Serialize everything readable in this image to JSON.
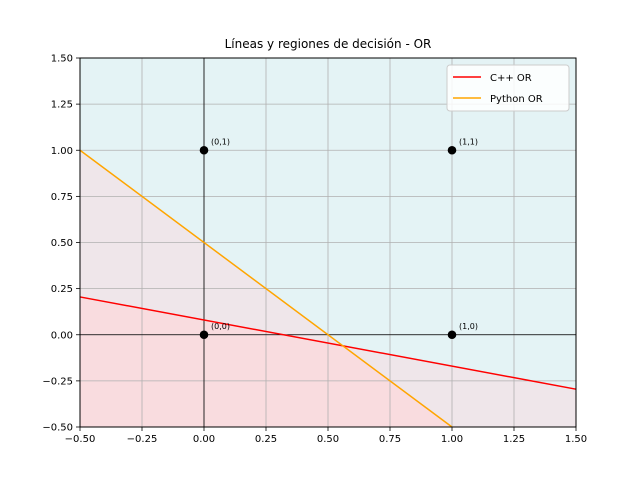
{
  "chart_data": {
    "type": "line",
    "title": "Líneas y regiones de decisión - OR",
    "xlabel": "",
    "ylabel": "",
    "xlim": [
      -0.5,
      1.5
    ],
    "ylim": [
      -0.5,
      1.5
    ],
    "xticks": [
      "−0.50",
      "−0.25",
      "0.00",
      "0.25",
      "0.50",
      "0.75",
      "1.00",
      "1.25",
      "1.50"
    ],
    "yticks": [
      "−0.50",
      "−0.25",
      "0.00",
      "0.25",
      "0.50",
      "0.75",
      "1.00",
      "1.25",
      "1.50"
    ],
    "xtick_values": [
      -0.5,
      -0.25,
      0,
      0.25,
      0.5,
      0.75,
      1.0,
      1.25,
      1.5
    ],
    "ytick_values": [
      -0.5,
      -0.25,
      0,
      0.25,
      0.5,
      0.75,
      1.0,
      1.25,
      1.5
    ],
    "grid": true,
    "legend_position": "top-right",
    "series": [
      {
        "name": "C++ OR",
        "color": "#ff0000",
        "x": [
          -0.5,
          1.5
        ],
        "y": [
          0.205,
          -0.295
        ]
      },
      {
        "name": "Python OR",
        "color": "#ffa500",
        "x": [
          -0.5,
          1.0
        ],
        "y": [
          1.0,
          -0.5
        ]
      }
    ],
    "points": [
      {
        "label": "(0,0)",
        "x": 0,
        "y": 0
      },
      {
        "label": "(0,1)",
        "x": 0,
        "y": 1
      },
      {
        "label": "(1,0)",
        "x": 1,
        "y": 0
      },
      {
        "label": "(1,1)",
        "x": 1,
        "y": 1
      }
    ],
    "region_colors": {
      "positive": "#e4f3f5",
      "negative": "#f9dcdf",
      "mixed": "#efe6ea"
    }
  }
}
